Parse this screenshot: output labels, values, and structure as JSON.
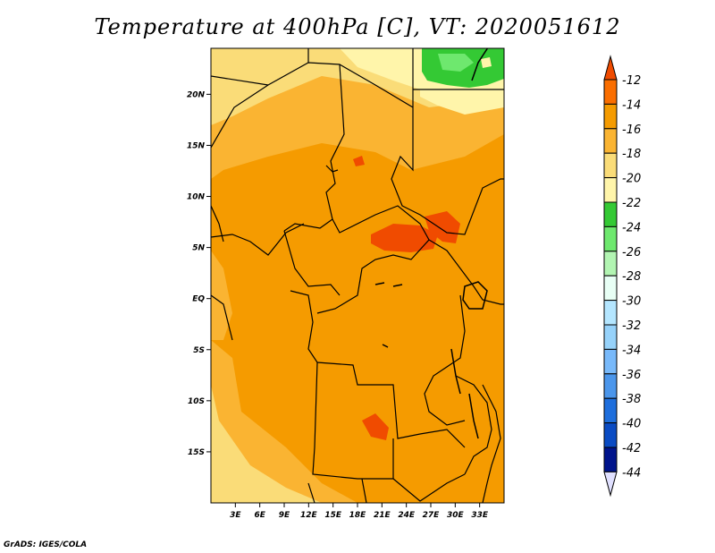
{
  "title": "Temperature at 400hPa [C], VT: 2020051612",
  "footer": "GrADS: IGES/COLA",
  "map": {
    "lon_range": [
      0,
      36
    ],
    "lat_range": [
      -20,
      24.5
    ],
    "lon_ticks": [
      "3E",
      "6E",
      "9E",
      "12E",
      "15E",
      "18E",
      "21E",
      "24E",
      "27E",
      "30E",
      "33E"
    ],
    "lat_ticks": [
      "20N",
      "15N",
      "10N",
      "5N",
      "EQ",
      "5S",
      "10S",
      "15S"
    ]
  },
  "colorbar": {
    "levels": [
      "-12",
      "-14",
      "-16",
      "-18",
      "-20",
      "-22",
      "-24",
      "-26",
      "-28",
      "-30",
      "-32",
      "-34",
      "-36",
      "-38",
      "-40",
      "-42",
      "-44"
    ],
    "colors": [
      "#f04b00",
      "#fa6e00",
      "#f59b00",
      "#fab432",
      "#fadc78",
      "#fff5aa",
      "#34c934",
      "#6ee86e",
      "#b2f5b2",
      "#e8fff5",
      "#b4e6ff",
      "#96d2fa",
      "#78b9fa",
      "#4b96eb",
      "#1e6edc",
      "#0a4bc3",
      "#00148c",
      "#e0e0ff"
    ]
  }
}
